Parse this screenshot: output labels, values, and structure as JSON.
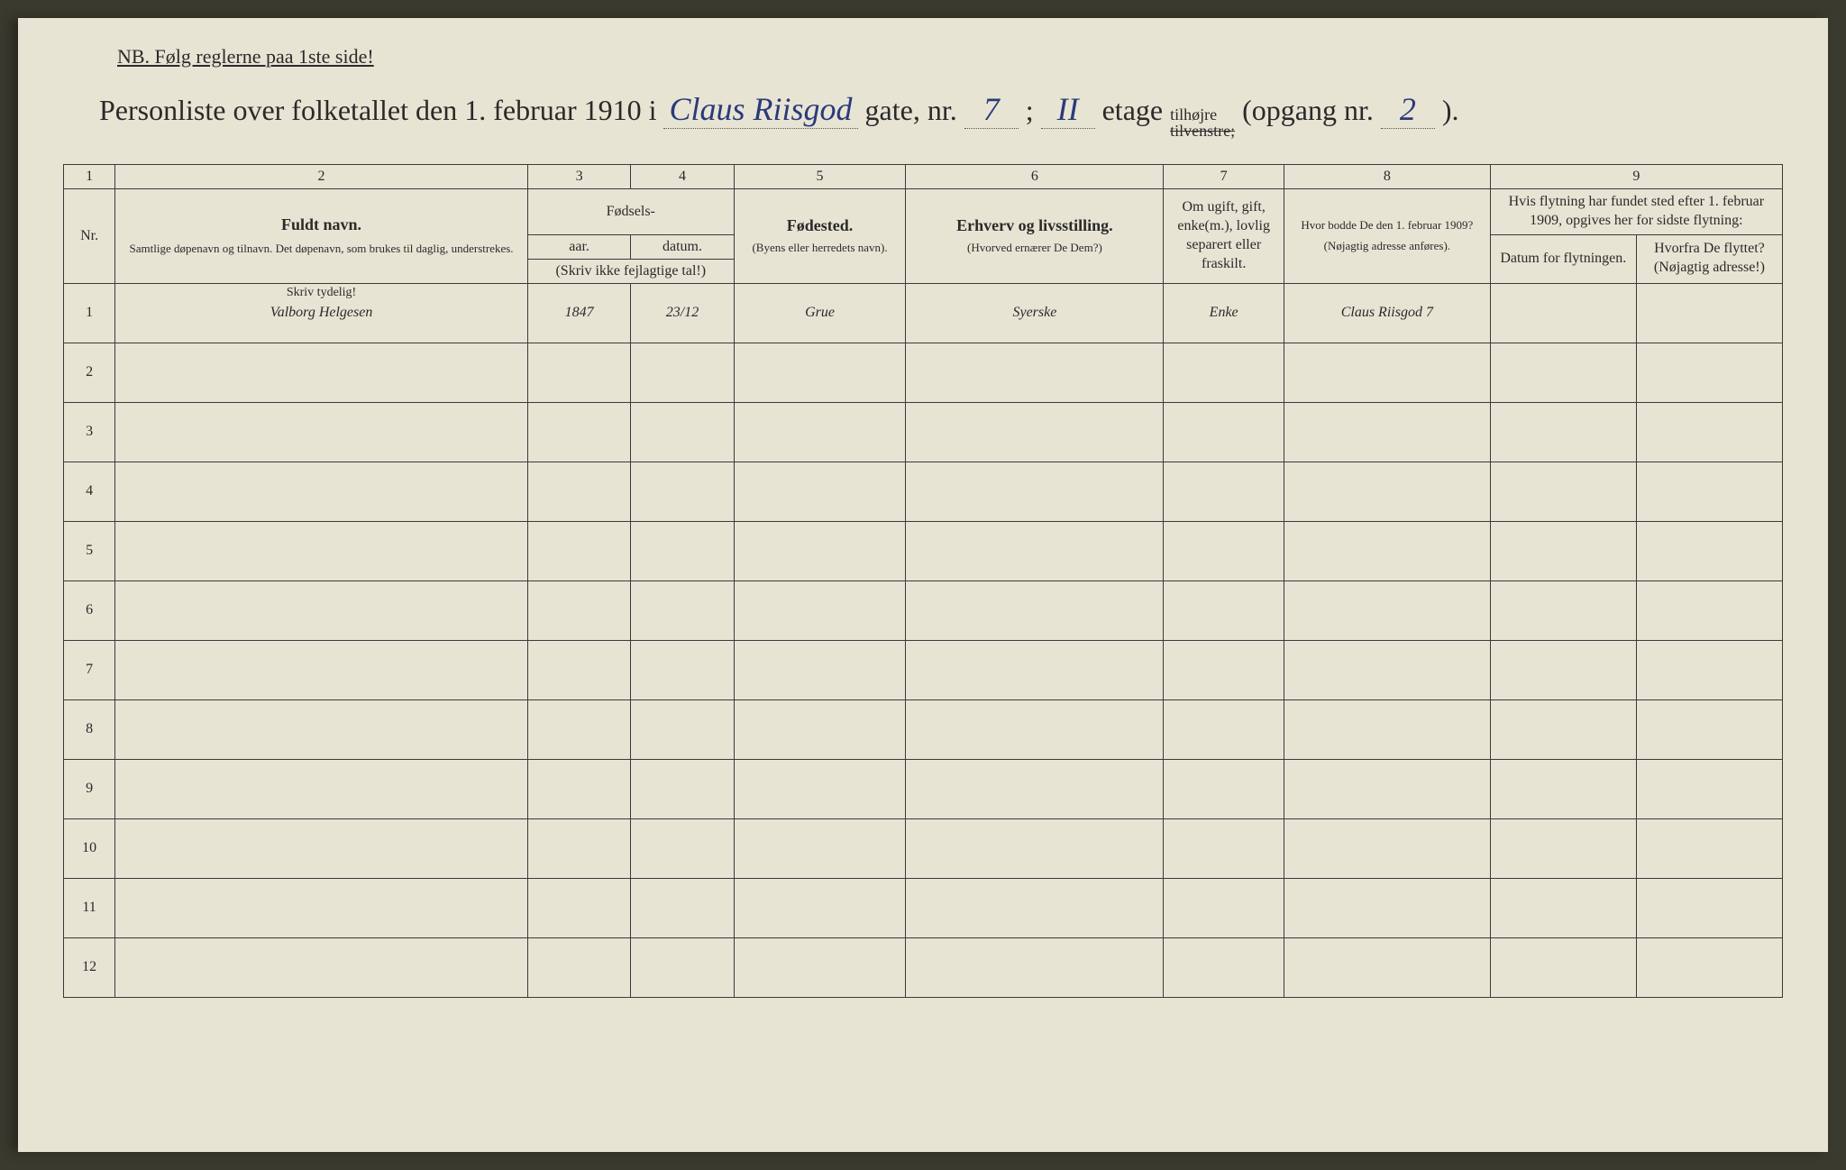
{
  "header": {
    "nb_text": "NB.   Følg reglerne paa 1ste side!",
    "title_prefix": "Personliste over folketallet den 1. februar 1910 i",
    "street_name": "Claus Riisgod",
    "gate_label": "gate, nr.",
    "house_nr": "7",
    "floor_nr": "II",
    "etage_label": "etage",
    "side_top": "tilhøjre",
    "side_bottom": "tilvenstre;",
    "opgang_label": "(opgang nr.",
    "opgang_nr": "2",
    "opgang_close": ")."
  },
  "columns": {
    "numbers": [
      "1",
      "2",
      "3",
      "4",
      "5",
      "6",
      "7",
      "8",
      "9"
    ],
    "nr": "Nr.",
    "name_title": "Fuldt navn.",
    "name_sub": "Samtlige døpenavn og tilnavn. Det døpenavn, som brukes til daglig, understrekes.",
    "fodsels": "Fødsels-",
    "year": "aar.",
    "date": "datum.",
    "year_date_sub": "(Skriv ikke fejlagtige tal!)",
    "birthplace_title": "Fødested.",
    "birthplace_sub": "(Byens eller herredets navn).",
    "occupation_title": "Erhverv og livsstilling.",
    "occupation_sub": "(Hvorved ernærer De Dem?)",
    "marital": "Om ugift, gift, enke(m.), lovlig separert eller fraskilt.",
    "address_title": "Hvor bodde De den 1. februar 1909?",
    "address_sub": "(Nøjagtig adresse anføres).",
    "move_header": "Hvis flytning har fundet sted efter 1. februar 1909, opgives her for sidste flytning:",
    "move_date": "Datum for flytningen.",
    "move_from": "Hvorfra De flyttet? (Nøjagtig adresse!)",
    "skriv_tydelig": "Skriv tydelig!"
  },
  "rows": [
    {
      "nr": "1",
      "name": "Valborg Helgesen",
      "year": "1847",
      "date": "23/12",
      "birthplace": "Grue",
      "occupation": "Syerske",
      "marital": "Enke",
      "address": "Claus Riisgod 7",
      "movedate": "",
      "movedfrom": ""
    },
    {
      "nr": "2",
      "name": "",
      "year": "",
      "date": "",
      "birthplace": "",
      "occupation": "",
      "marital": "",
      "address": "",
      "movedate": "",
      "movedfrom": ""
    },
    {
      "nr": "3",
      "name": "",
      "year": "",
      "date": "",
      "birthplace": "",
      "occupation": "",
      "marital": "",
      "address": "",
      "movedate": "",
      "movedfrom": ""
    },
    {
      "nr": "4",
      "name": "",
      "year": "",
      "date": "",
      "birthplace": "",
      "occupation": "",
      "marital": "",
      "address": "",
      "movedate": "",
      "movedfrom": ""
    },
    {
      "nr": "5",
      "name": "",
      "year": "",
      "date": "",
      "birthplace": "",
      "occupation": "",
      "marital": "",
      "address": "",
      "movedate": "",
      "movedfrom": ""
    },
    {
      "nr": "6",
      "name": "",
      "year": "",
      "date": "",
      "birthplace": "",
      "occupation": "",
      "marital": "",
      "address": "",
      "movedate": "",
      "movedfrom": ""
    },
    {
      "nr": "7",
      "name": "",
      "year": "",
      "date": "",
      "birthplace": "",
      "occupation": "",
      "marital": "",
      "address": "",
      "movedate": "",
      "movedfrom": ""
    },
    {
      "nr": "8",
      "name": "",
      "year": "",
      "date": "",
      "birthplace": "",
      "occupation": "",
      "marital": "",
      "address": "",
      "movedate": "",
      "movedfrom": ""
    },
    {
      "nr": "9",
      "name": "",
      "year": "",
      "date": "",
      "birthplace": "",
      "occupation": "",
      "marital": "",
      "address": "",
      "movedate": "",
      "movedfrom": ""
    },
    {
      "nr": "10",
      "name": "",
      "year": "",
      "date": "",
      "birthplace": "",
      "occupation": "",
      "marital": "",
      "address": "",
      "movedate": "",
      "movedfrom": ""
    },
    {
      "nr": "11",
      "name": "",
      "year": "",
      "date": "",
      "birthplace": "",
      "occupation": "",
      "marital": "",
      "address": "",
      "movedate": "",
      "movedfrom": ""
    },
    {
      "nr": "12",
      "name": "",
      "year": "",
      "date": "",
      "birthplace": "",
      "occupation": "",
      "marital": "",
      "address": "",
      "movedate": "",
      "movedfrom": ""
    }
  ]
}
